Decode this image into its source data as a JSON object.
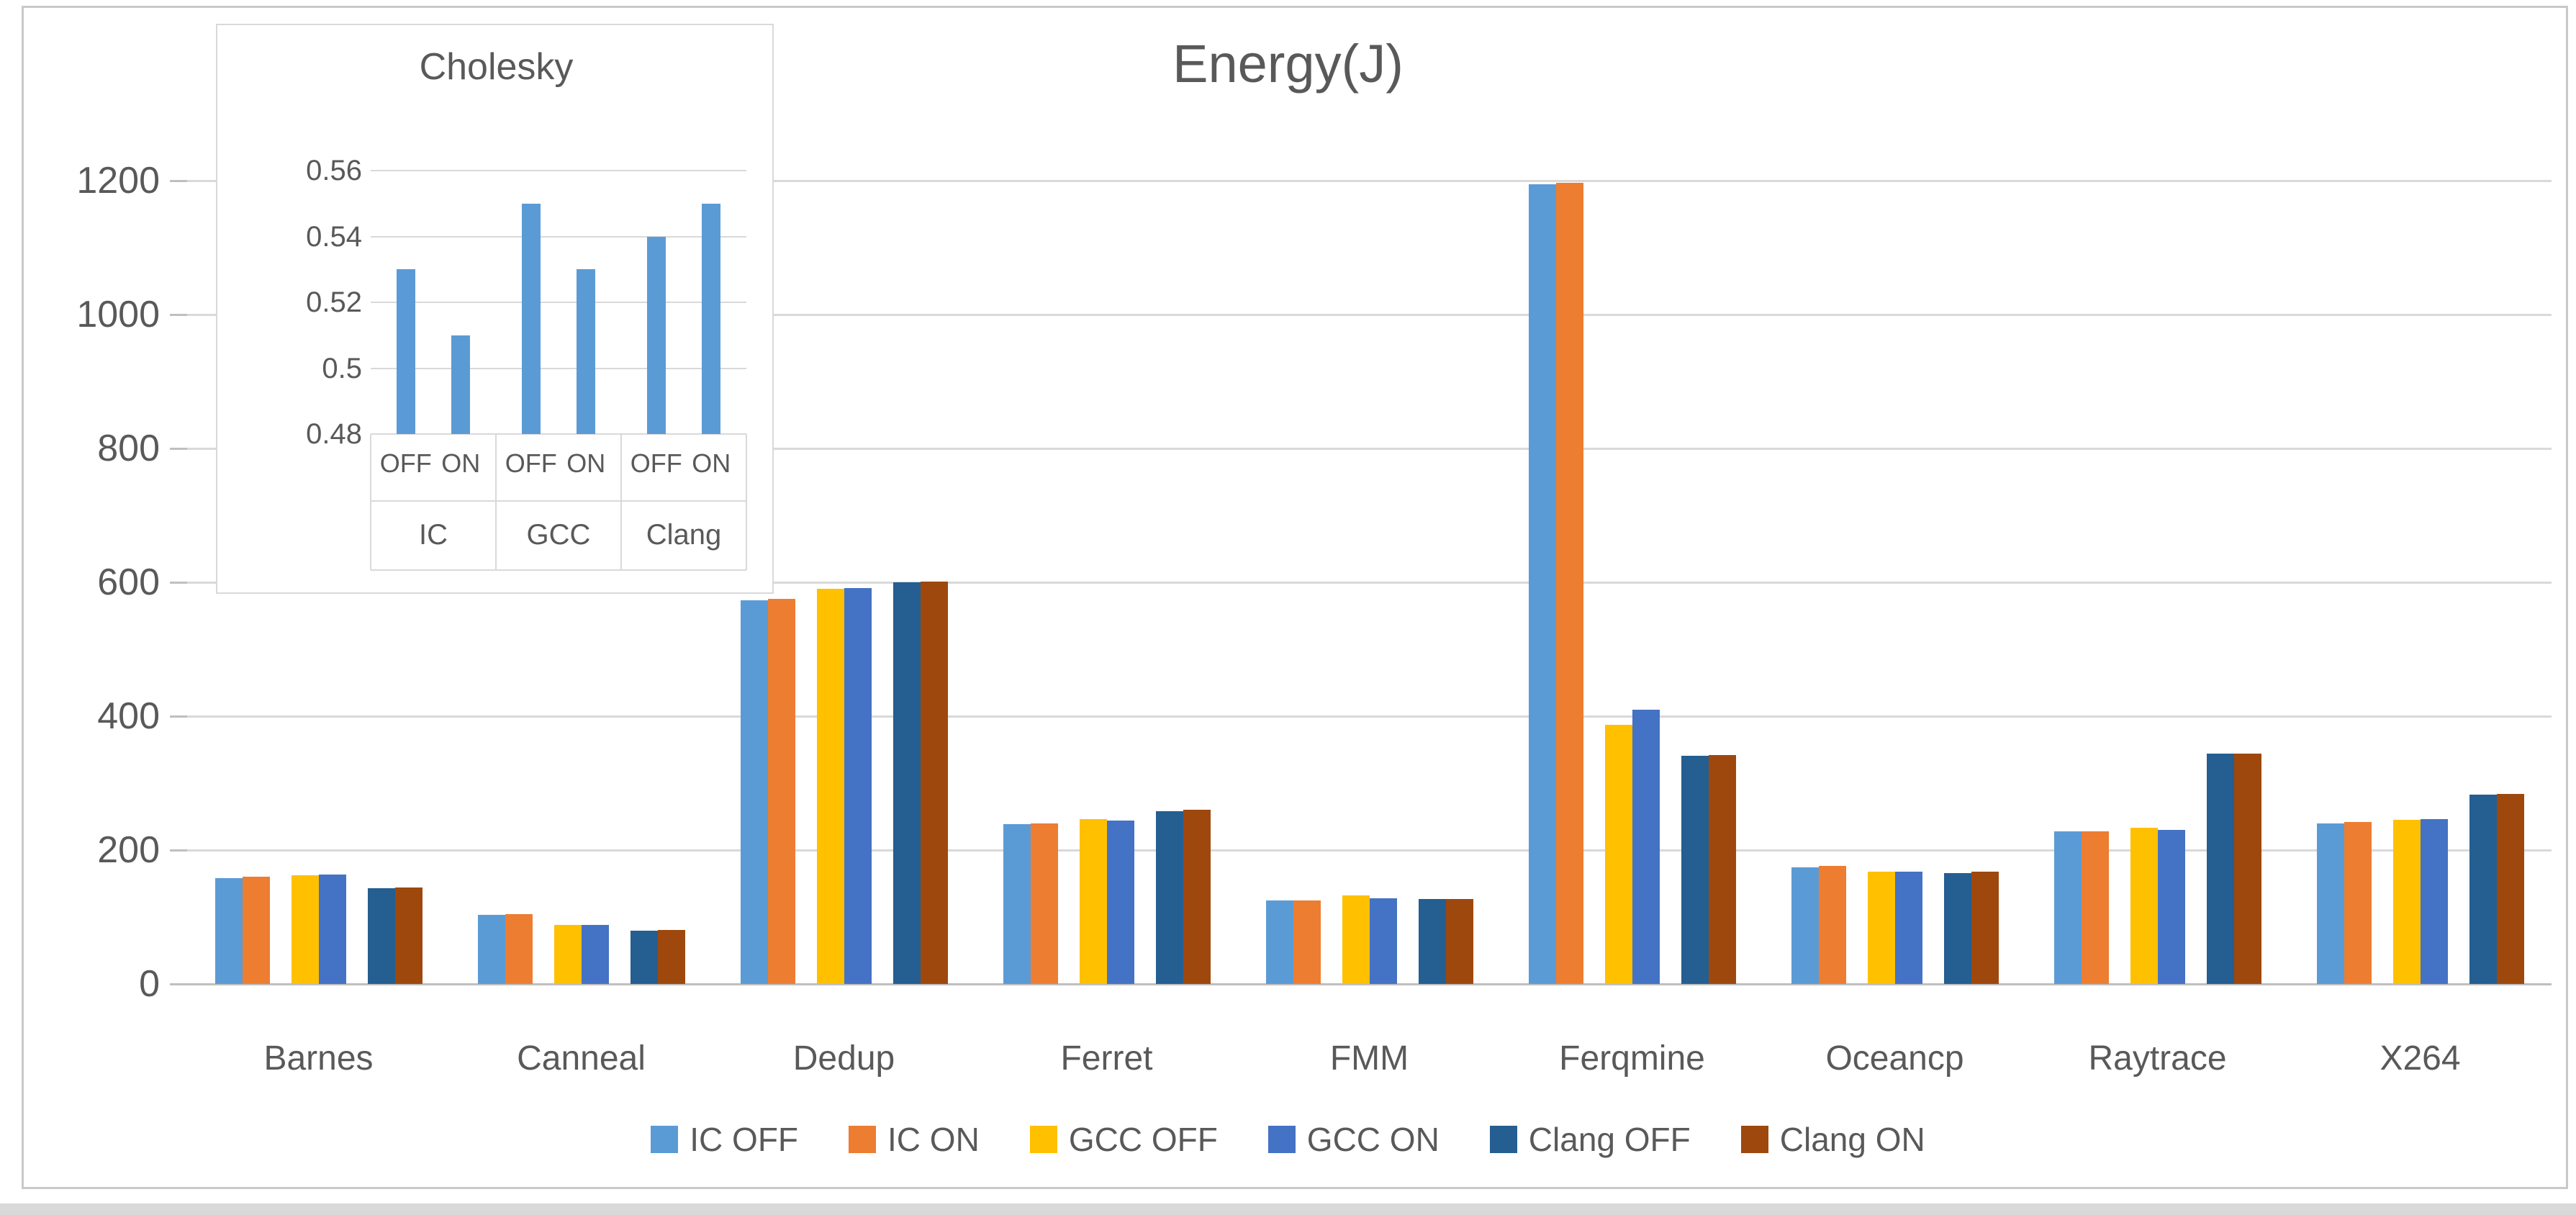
{
  "title": "Energy(J)",
  "colors": {
    "text": "#595959",
    "grid": "#D9D9D9",
    "axis": "#BFBFBF",
    "border": "#C9C9C9",
    "background": "#FFFFFF"
  },
  "legend": {
    "items": [
      {
        "label": "IC OFF",
        "color": "#5B9BD5"
      },
      {
        "label": "IC ON",
        "color": "#ED7D31"
      },
      {
        "label": "GCC OFF",
        "color": "#FFC000"
      },
      {
        "label": "GCC ON",
        "color": "#4472C4"
      },
      {
        "label": "Clang OFF",
        "color": "#255E91"
      },
      {
        "label": "Clang ON",
        "color": "#9E480E"
      }
    ]
  },
  "chart_data": [
    {
      "type": "bar",
      "title": "Energy(J)",
      "categories": [
        "Barnes",
        "Canneal",
        "Dedup",
        "Ferret",
        "FMM",
        "Ferqmine",
        "Oceancp",
        "Raytrace",
        "X264"
      ],
      "series": [
        {
          "name": "IC OFF",
          "color": "#5B9BD5",
          "values": [
            158,
            103,
            573,
            239,
            125,
            1195,
            174,
            228,
            240
          ]
        },
        {
          "name": "IC ON",
          "color": "#ED7D31",
          "values": [
            160,
            104,
            575,
            240,
            125,
            1197,
            176,
            228,
            242
          ]
        },
        {
          "name": "GCC OFF",
          "color": "#FFC000",
          "values": [
            162,
            88,
            590,
            246,
            132,
            387,
            168,
            233,
            245
          ]
        },
        {
          "name": "GCC ON",
          "color": "#4472C4",
          "values": [
            163,
            88,
            591,
            244,
            128,
            410,
            168,
            230,
            246
          ]
        },
        {
          "name": "Clang OFF",
          "color": "#255E91",
          "values": [
            143,
            80,
            600,
            258,
            127,
            341,
            166,
            344,
            283
          ]
        },
        {
          "name": "Clang ON",
          "color": "#9E480E",
          "values": [
            144,
            81,
            601,
            260,
            127,
            342,
            168,
            344,
            284
          ]
        }
      ],
      "ylim": [
        0,
        1200
      ],
      "yticks": [
        0,
        200,
        400,
        600,
        800,
        1000,
        1200
      ],
      "grid": true,
      "legend_position": "bottom"
    },
    {
      "type": "bar",
      "title": "Cholesky",
      "bar_color": "#5B9BD5",
      "groups": [
        "IC",
        "GCC",
        "Clang"
      ],
      "pair_labels": [
        "OFF",
        "ON"
      ],
      "categories": [
        "IC OFF",
        "IC ON",
        "GCC OFF",
        "GCC ON",
        "Clang OFF",
        "Clang ON"
      ],
      "values": [
        0.53,
        0.51,
        0.55,
        0.53,
        0.54,
        0.55
      ],
      "ylim": [
        0.48,
        0.56
      ],
      "yticks": [
        0.48,
        0.5,
        0.52,
        0.54,
        0.56
      ],
      "grid": true,
      "legend_position": "none"
    }
  ]
}
